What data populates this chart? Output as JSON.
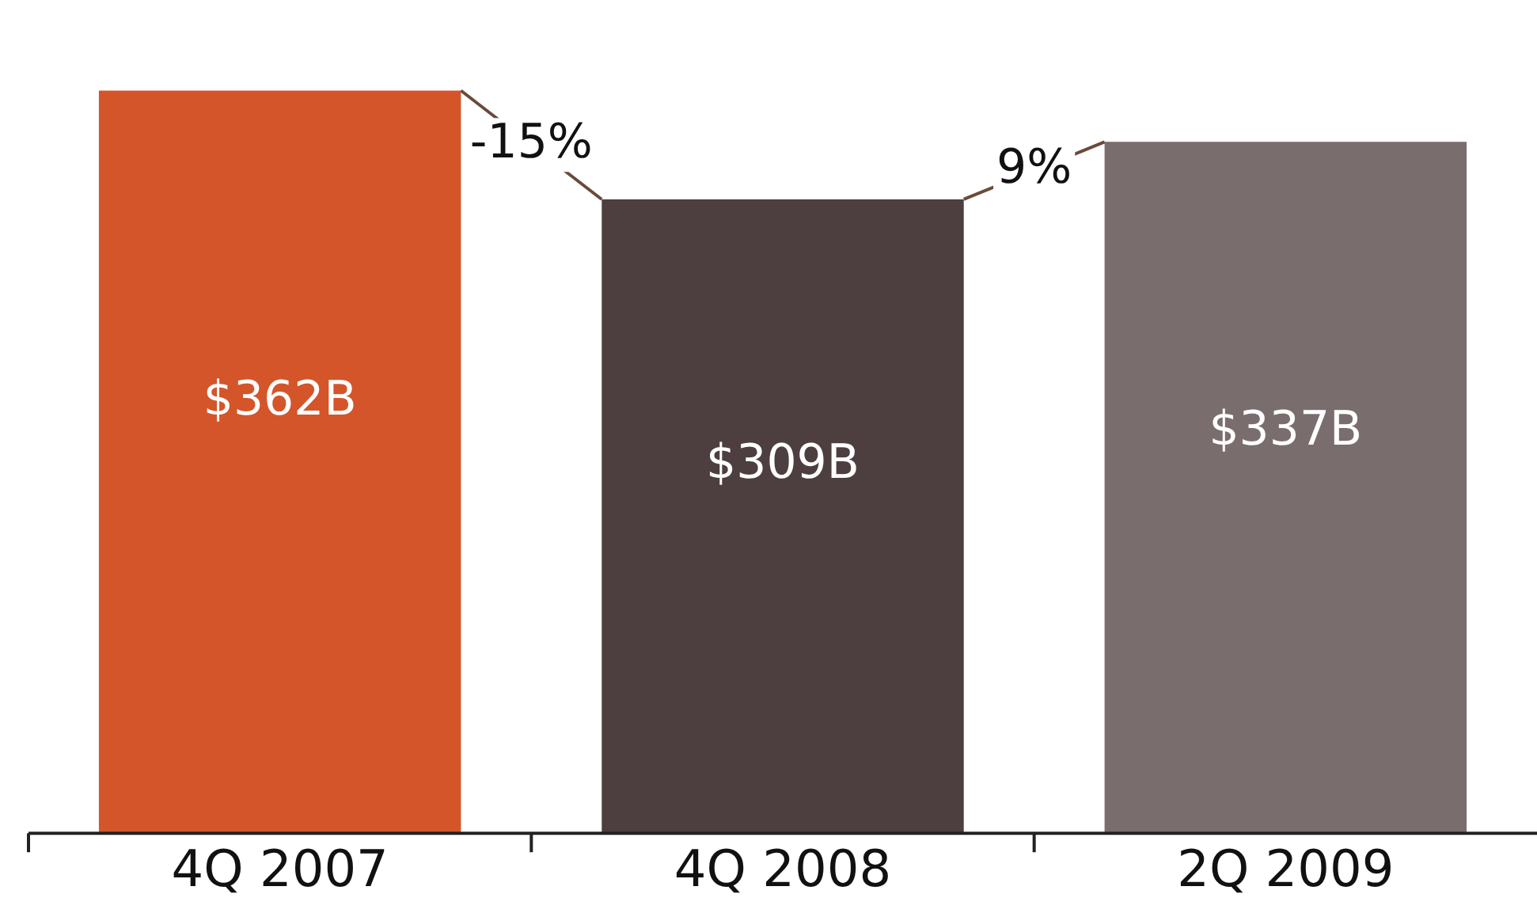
{
  "chart_data": {
    "type": "bar",
    "categories": [
      "4Q 2007",
      "4Q 2008",
      "2Q 2009"
    ],
    "values": [
      362,
      309,
      337
    ],
    "colors": [
      "#d4552a",
      "#4d3f3f",
      "#7a6d6e"
    ],
    "value_labels": [
      "$362B",
      "$309B",
      "$337B"
    ],
    "tick_labels": "x",
    "grid": false,
    "legend": false,
    "annotations": [
      "-15%",
      "9%"
    ]
  }
}
